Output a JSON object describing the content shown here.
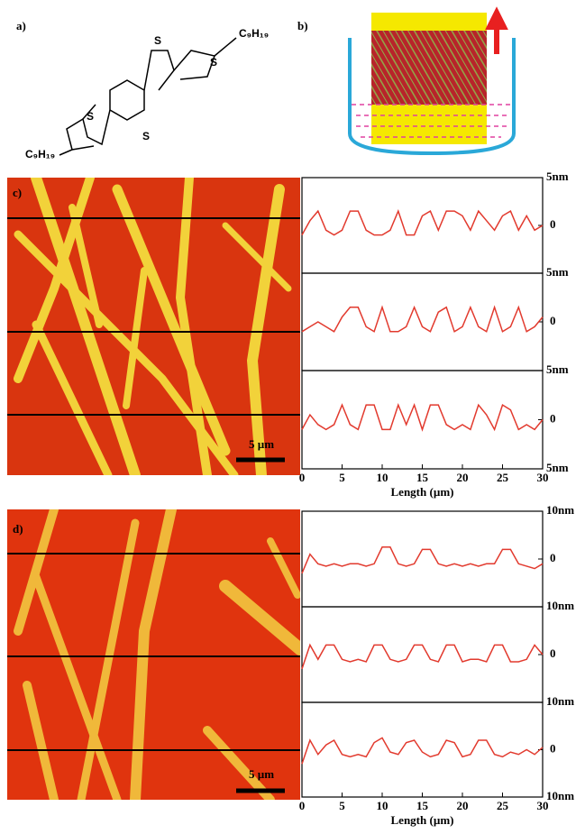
{
  "labels": {
    "a": "a)",
    "b": "b)",
    "c": "c)",
    "d": "d)"
  },
  "molecule": {
    "sulfur": [
      "S",
      "S",
      "S",
      "S"
    ],
    "substituents": [
      "C₉H₁₉",
      "C₉H₁₉"
    ]
  },
  "scale_bars": [
    "5 µm",
    "5 µm"
  ],
  "chart_data": [
    {
      "type": "line",
      "x": [
        0,
        1,
        2,
        3,
        4,
        5,
        6,
        7,
        8,
        9,
        10,
        11,
        12,
        13,
        14,
        15,
        16,
        17,
        18,
        19,
        20,
        21,
        22,
        23,
        24,
        25,
        26,
        27,
        28,
        29,
        30
      ],
      "xlim": [
        0,
        30
      ],
      "series": [
        {
          "color": "#e23a2e",
          "values": [
            -1,
            0.5,
            1.5,
            -0.5,
            -1,
            -0.5,
            1.5,
            1.5,
            -0.5,
            -1,
            -1,
            -0.5,
            1.5,
            -1,
            -1,
            1,
            1.5,
            -0.5,
            1.5,
            1.5,
            1,
            -0.5,
            1.5,
            0.5,
            -0.5,
            1,
            1.5,
            -0.5,
            1,
            -0.5,
            0
          ]
        }
      ],
      "ylim": [
        -5,
        5
      ],
      "yticks": [
        {
          "value": 5,
          "label": "5nm"
        },
        0
      ]
    },
    {
      "type": "line",
      "x": [
        0,
        1,
        2,
        3,
        4,
        5,
        6,
        7,
        8,
        9,
        10,
        11,
        12,
        13,
        14,
        15,
        16,
        17,
        18,
        19,
        20,
        21,
        22,
        23,
        24,
        25,
        26,
        27,
        28,
        29,
        30
      ],
      "xlim": [
        0,
        30
      ],
      "series": [
        {
          "color": "#e23a2e",
          "values": [
            -1,
            -0.5,
            0,
            -0.5,
            -1,
            0.5,
            1.5,
            1.5,
            -0.5,
            -1,
            1.5,
            -1,
            -1,
            -0.5,
            1.5,
            -0.5,
            -1,
            1,
            1.5,
            -1,
            -0.5,
            1.5,
            -0.5,
            -1,
            1.5,
            -1,
            -0.5,
            1.5,
            -1,
            -0.5,
            0.5
          ]
        }
      ],
      "ylim": [
        -5,
        5
      ],
      "yticks": [
        {
          "value": 5,
          "label": "5nm"
        },
        0
      ]
    },
    {
      "type": "line",
      "x": [
        0,
        1,
        2,
        3,
        4,
        5,
        6,
        7,
        8,
        9,
        10,
        11,
        12,
        13,
        14,
        15,
        16,
        17,
        18,
        19,
        20,
        21,
        22,
        23,
        24,
        25,
        26,
        27,
        28,
        29,
        30
      ],
      "xlim": [
        0,
        30
      ],
      "series": [
        {
          "color": "#e23a2e",
          "values": [
            -1,
            0.5,
            -0.5,
            -1,
            -0.5,
            1.5,
            -0.5,
            -1,
            1.5,
            1.5,
            -1,
            -1,
            1.5,
            -0.5,
            1.5,
            -1,
            1.5,
            1.5,
            -0.5,
            -1,
            -0.5,
            -1,
            1.5,
            0.5,
            -1,
            1.5,
            1,
            -1,
            -0.5,
            -1,
            0
          ]
        }
      ],
      "ylim": [
        -5,
        5
      ],
      "yticks": [
        {
          "value": 5,
          "label": "5nm"
        },
        0,
        {
          "value": -5,
          "label": "5nm"
        }
      ],
      "xticks": [
        0,
        5,
        10,
        15,
        20,
        25,
        30
      ],
      "xlabel": "Length (µm)"
    },
    {
      "type": "line",
      "x": [
        0,
        1,
        2,
        3,
        4,
        5,
        6,
        7,
        8,
        9,
        10,
        11,
        12,
        13,
        14,
        15,
        16,
        17,
        18,
        19,
        20,
        21,
        22,
        23,
        24,
        25,
        26,
        27,
        28,
        29,
        30
      ],
      "xlim": [
        0,
        30
      ],
      "series": [
        {
          "color": "#e23a2e",
          "values": [
            -3,
            1,
            -1,
            -1.5,
            -1,
            -1.5,
            -1,
            -1,
            -1.5,
            -1,
            2.5,
            2.5,
            -1,
            -1.5,
            -1,
            2,
            2,
            -1,
            -1.5,
            -1,
            -1.5,
            -1,
            -1.5,
            -1,
            -1,
            2,
            2,
            -1,
            -1.5,
            -2,
            -1
          ]
        }
      ],
      "ylim": [
        -10,
        10
      ],
      "yticks": [
        {
          "value": 10,
          "label": "10nm"
        },
        0
      ]
    },
    {
      "type": "line",
      "x": [
        0,
        1,
        2,
        3,
        4,
        5,
        6,
        7,
        8,
        9,
        10,
        11,
        12,
        13,
        14,
        15,
        16,
        17,
        18,
        19,
        20,
        21,
        22,
        23,
        24,
        25,
        26,
        27,
        28,
        29,
        30
      ],
      "xlim": [
        0,
        30
      ],
      "series": [
        {
          "color": "#e23a2e",
          "values": [
            -3,
            2,
            -1,
            2,
            2,
            -1,
            -1.5,
            -1,
            -1.5,
            2,
            2,
            -1,
            -1.5,
            -1,
            2,
            2,
            -1,
            -1.5,
            2,
            2,
            -1.5,
            -1,
            -1,
            -1.5,
            2,
            2,
            -1.5,
            -1.5,
            -1,
            2,
            0
          ]
        }
      ],
      "ylim": [
        -10,
        10
      ],
      "yticks": [
        {
          "value": 10,
          "label": "10nm"
        },
        0
      ]
    },
    {
      "type": "line",
      "x": [
        0,
        1,
        2,
        3,
        4,
        5,
        6,
        7,
        8,
        9,
        10,
        11,
        12,
        13,
        14,
        15,
        16,
        17,
        18,
        19,
        20,
        21,
        22,
        23,
        24,
        25,
        26,
        27,
        28,
        29,
        30
      ],
      "xlim": [
        0,
        30
      ],
      "series": [
        {
          "color": "#e23a2e",
          "values": [
            -3,
            2,
            -1,
            1,
            2,
            -1,
            -1.5,
            -1,
            -1.5,
            1.5,
            2.5,
            -0.5,
            -1,
            1.5,
            2,
            -0.5,
            -1.5,
            -1,
            2,
            1.5,
            -1.5,
            -1,
            2,
            2,
            -1,
            -1.5,
            -0.5,
            -1,
            0,
            -1,
            0.5
          ]
        }
      ],
      "ylim": [
        -10,
        10
      ],
      "yticks": [
        {
          "value": 10,
          "label": "10nm"
        },
        0,
        {
          "value": -10,
          "label": "10nm"
        }
      ],
      "xticks": [
        0,
        5,
        10,
        15,
        20,
        25,
        30
      ],
      "xlabel": "Length (µm)"
    }
  ]
}
